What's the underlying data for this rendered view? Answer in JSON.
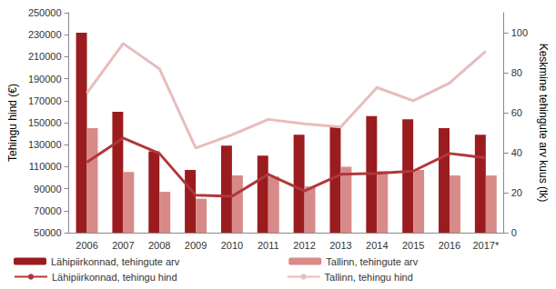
{
  "chart_data": {
    "type": "bar",
    "categories": [
      "2006",
      "2007",
      "2008",
      "2009",
      "2010",
      "2011",
      "2012",
      "2013",
      "2014",
      "2015",
      "2016",
      "2017*"
    ],
    "ylabel": "Tehingu hind (€)",
    "y2label": "Keskmine tehingute arv kuus (tk)",
    "ylim": [
      50000,
      250000
    ],
    "yticks": [
      50000,
      70000,
      90000,
      110000,
      130000,
      150000,
      170000,
      190000,
      210000,
      230000,
      250000
    ],
    "y2lim": [
      0,
      110
    ],
    "y2ticks": [
      0,
      20,
      40,
      60,
      80,
      100
    ],
    "grid": false,
    "legend": "bottom",
    "series": [
      {
        "name": "Lähipiirkonnad, tehingute arv",
        "type": "bar",
        "axis": "y2",
        "color": "#9b1c1f",
        "values": [
          100,
          60.5,
          40.7,
          31.4,
          43.5,
          38.5,
          49,
          52.8,
          58.3,
          56.7,
          52.3,
          49
        ]
      },
      {
        "name": "Tallinn, tehingute arv",
        "type": "bar",
        "axis": "y2",
        "color": "#d88a88",
        "values": [
          52.3,
          30.3,
          20.4,
          17,
          28.6,
          28,
          23.1,
          33,
          30.8,
          31.4,
          28.6,
          28.6
        ]
      },
      {
        "name": "Lähipiirkonnad, tehingu hind",
        "type": "line",
        "axis": "y",
        "color": "#b0373a",
        "values": [
          114000,
          136000,
          122000,
          84000,
          83000,
          103000,
          88000,
          103000,
          104000,
          106000,
          122000,
          118000
        ]
      },
      {
        "name": "Tallinn, tehingu hind",
        "type": "line",
        "axis": "y",
        "color": "#e8bcbb",
        "values": [
          177000,
          222000,
          199000,
          127000,
          139000,
          153000,
          149000,
          146000,
          182000,
          170000,
          186000,
          215000
        ]
      }
    ]
  }
}
